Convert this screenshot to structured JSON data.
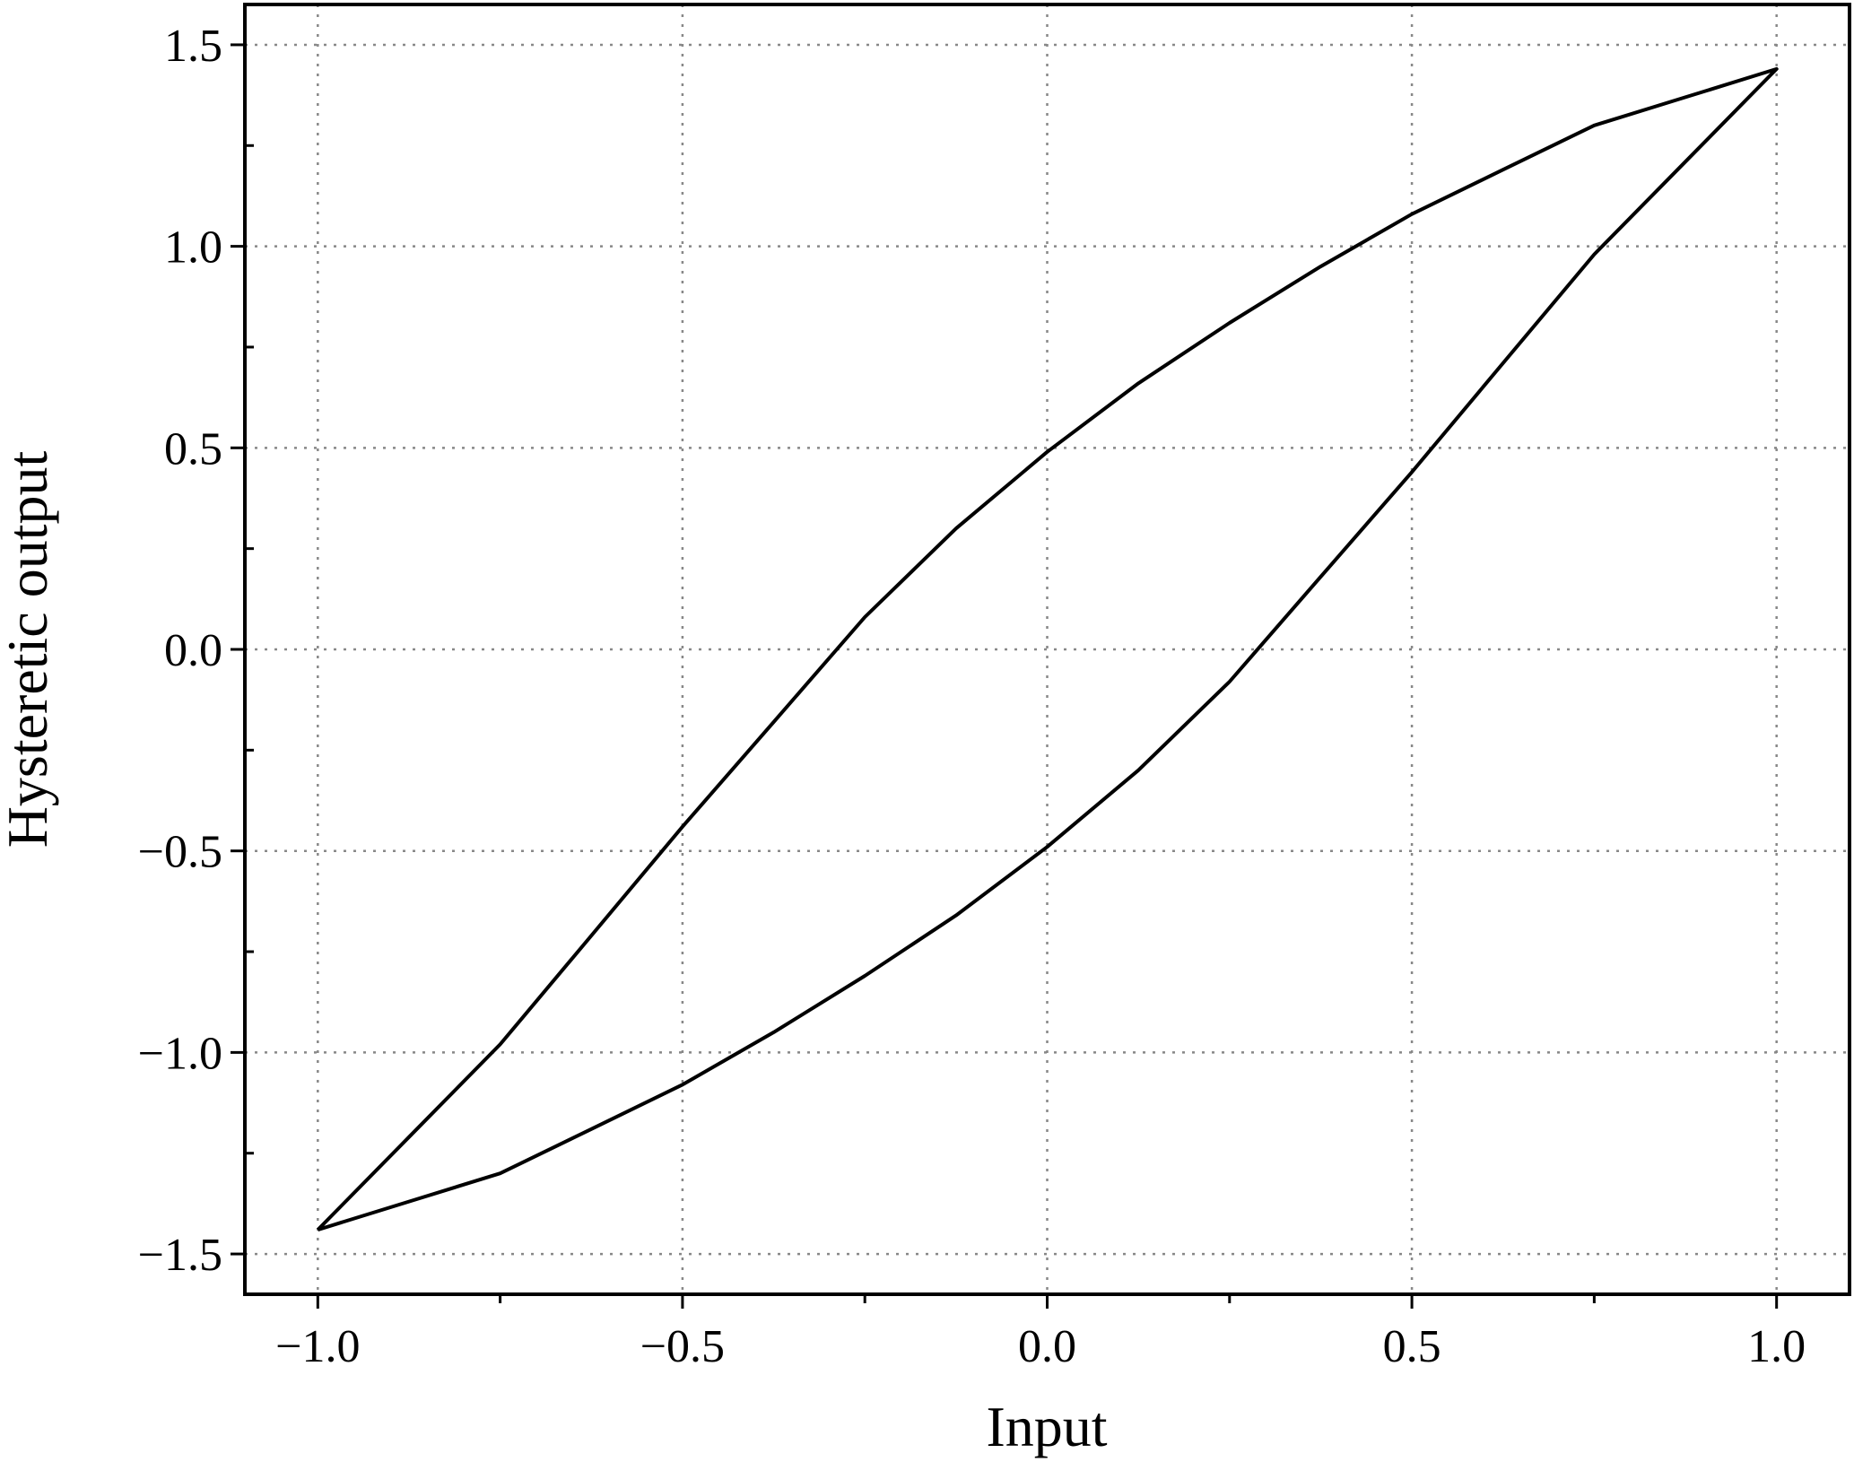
{
  "chart_data": {
    "type": "line",
    "x_label": "Input",
    "y_label": "Hysteretic output",
    "x": [
      -1,
      -0.875,
      -0.75,
      -0.625,
      -0.5,
      -0.375,
      -0.25,
      -0.125,
      0,
      0.125,
      0.25,
      0.375,
      0.5,
      0.625,
      0.75,
      0.875,
      1,
      0.875,
      0.75,
      0.625,
      0.5,
      0.375,
      0.25,
      0.125,
      0,
      -0.125,
      -0.25,
      -0.375,
      -0.5,
      -0.625,
      -0.75,
      -0.875,
      -1
    ],
    "values": [
      -1.44,
      -1.37,
      -1.3,
      -1.19,
      -1.08,
      -0.95,
      -0.81,
      -0.66,
      -0.49,
      -0.3,
      -0.08,
      0.18,
      0.44,
      0.71,
      0.98,
      1.21,
      1.44,
      1.37,
      1.3,
      1.19,
      1.08,
      0.95,
      0.81,
      0.66,
      0.49,
      0.3,
      0.08,
      -0.18,
      -0.44,
      -0.71,
      -0.98,
      -1.21,
      -1.44
    ],
    "color": "#000000",
    "xlim": [
      -1.1,
      1.1
    ],
    "xticks": [
      {
        "value": -1,
        "label": "−1.0"
      },
      {
        "value": -0.5,
        "label": "−0.5"
      },
      {
        "value": 0,
        "label": "0.0"
      },
      {
        "value": 0.5,
        "label": "0.5"
      },
      {
        "value": 1,
        "label": "1.0"
      }
    ],
    "xticks_minor": [
      -0.75,
      -0.25,
      0.25,
      0.75
    ],
    "ylim": [
      -1.6,
      1.6
    ],
    "yticks": [
      {
        "value": -1.5,
        "label": "−1.5"
      },
      {
        "value": -1,
        "label": "−1.0"
      },
      {
        "value": -0.5,
        "label": "−0.5"
      },
      {
        "value": 0,
        "label": "0.0"
      },
      {
        "value": 0.5,
        "label": "0.5"
      },
      {
        "value": 1,
        "label": "1.0"
      },
      {
        "value": 1.5,
        "label": "1.5"
      }
    ],
    "yticks_minor": [
      -1.25,
      -0.75,
      -0.25,
      0.25,
      0.75,
      1.25
    ],
    "grid": true
  }
}
